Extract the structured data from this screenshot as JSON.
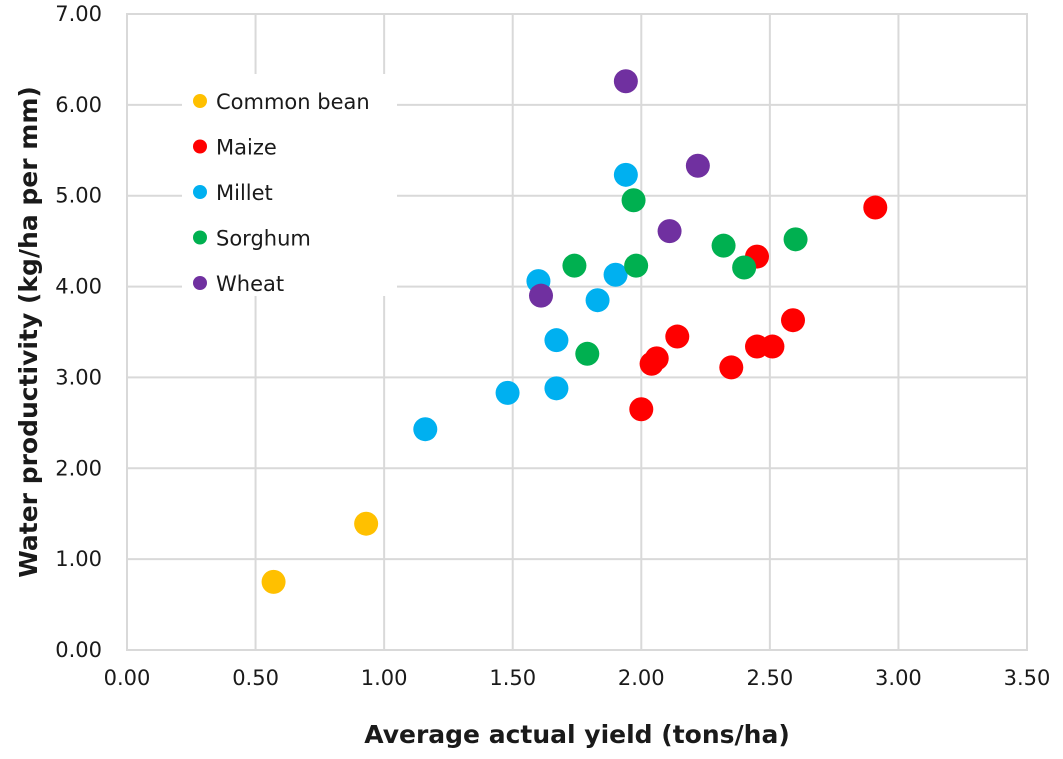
{
  "chart_data": {
    "type": "scatter",
    "title": "",
    "xlabel": "Average actual yield (tons/ha)",
    "ylabel": "Water productivity (kg/ha per mm)",
    "xlim": [
      0,
      3.5
    ],
    "ylim": [
      0,
      7
    ],
    "x_ticks": [
      "0.00",
      "0.50",
      "1.00",
      "1.50",
      "2.00",
      "2.50",
      "3.00",
      "3.50"
    ],
    "y_ticks": [
      "0.00",
      "1.00",
      "2.00",
      "3.00",
      "4.00",
      "5.00",
      "6.00",
      "7.00"
    ],
    "grid": true,
    "legend_position": "top-left",
    "series": [
      {
        "name": "Common bean",
        "color": "#ffc000",
        "points": [
          [
            0.57,
            0.75
          ],
          [
            0.93,
            1.39
          ]
        ]
      },
      {
        "name": "Maize",
        "color": "#ff0000",
        "points": [
          [
            2.0,
            2.65
          ],
          [
            2.04,
            3.15
          ],
          [
            2.06,
            3.21
          ],
          [
            2.14,
            3.45
          ],
          [
            2.35,
            3.11
          ],
          [
            2.45,
            3.34
          ],
          [
            2.51,
            3.34
          ],
          [
            2.45,
            4.33
          ],
          [
            2.59,
            3.63
          ],
          [
            2.91,
            4.87
          ]
        ]
      },
      {
        "name": "Millet",
        "color": "#00b0f0",
        "points": [
          [
            1.16,
            2.43
          ],
          [
            1.48,
            2.83
          ],
          [
            1.67,
            2.88
          ],
          [
            1.67,
            3.41
          ],
          [
            1.6,
            4.06
          ],
          [
            1.83,
            3.85
          ],
          [
            1.9,
            4.13
          ],
          [
            1.94,
            5.23
          ]
        ]
      },
      {
        "name": "Sorghum",
        "color": "#00b050",
        "points": [
          [
            1.79,
            3.26
          ],
          [
            1.74,
            4.23
          ],
          [
            1.98,
            4.23
          ],
          [
            1.97,
            4.95
          ],
          [
            2.32,
            4.45
          ],
          [
            2.4,
            4.21
          ],
          [
            2.6,
            4.52
          ]
        ]
      },
      {
        "name": "Wheat",
        "color": "#7030a0",
        "points": [
          [
            1.61,
            3.9
          ],
          [
            1.94,
            6.26
          ],
          [
            2.11,
            4.61
          ],
          [
            2.22,
            5.33
          ]
        ]
      }
    ]
  }
}
